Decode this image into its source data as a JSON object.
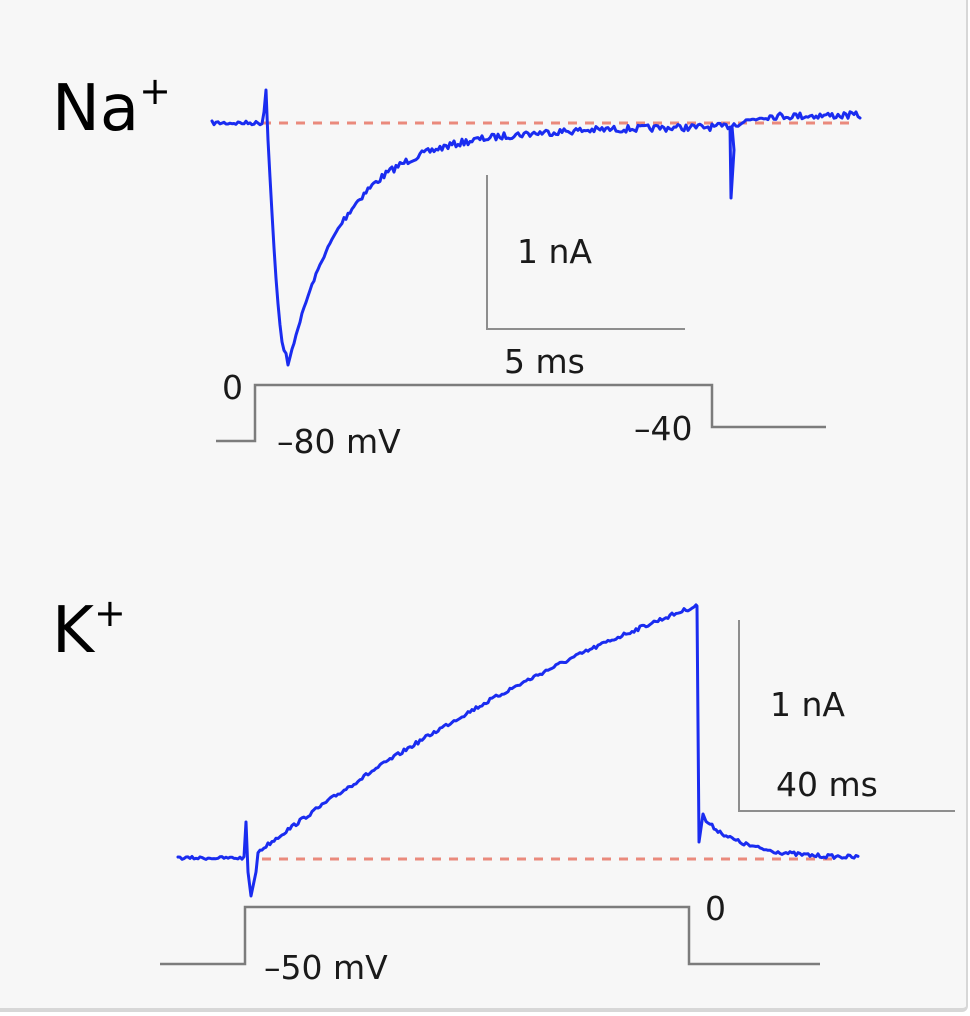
{
  "colors": {
    "trace": "#1a2cf0",
    "baseline": "#ea8a7c",
    "scalebar": "#8e8e8e",
    "command": "#7c7c7c"
  },
  "panels": {
    "na": {
      "ion": "Na",
      "charge": "+",
      "scale_current": "1 nA",
      "scale_time": "5 ms",
      "cmd_step_level": "0",
      "cmd_holding": "–80 mV",
      "cmd_end_level": "–40"
    },
    "k": {
      "ion": "K",
      "charge": "+",
      "scale_current": "1 nA",
      "scale_time": "40 ms",
      "cmd_step_level": "0",
      "cmd_holding": "–50 mV"
    }
  }
}
